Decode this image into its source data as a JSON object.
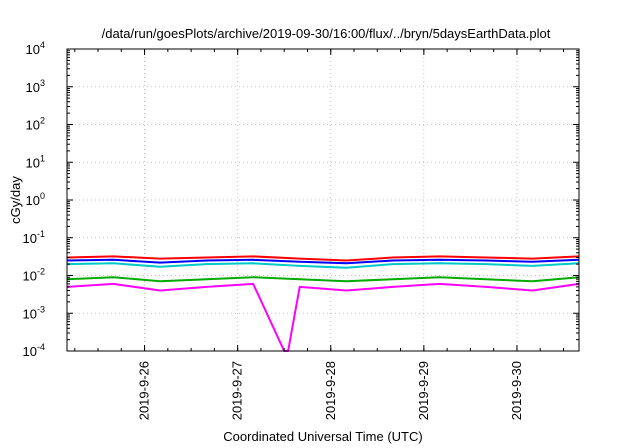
{
  "chart_data": {
    "type": "line",
    "title": "/data/run/goesPlots/archive/2019-09-30/16:00/flux/../bryn/5daysEarthData.plot",
    "xlabel": "Coordinated Universal Time (UTC)",
    "ylabel": "cGy/day",
    "y_scale": "log",
    "ylim": [
      0.0001,
      10000
    ],
    "xlim": [
      "2019-09-25 04:00",
      "2019-09-30 16:00"
    ],
    "y_ticks": [
      {
        "base": "10",
        "exp": "-4",
        "value": 0.0001
      },
      {
        "base": "10",
        "exp": "-3",
        "value": 0.001
      },
      {
        "base": "10",
        "exp": "-2",
        "value": 0.01
      },
      {
        "base": "10",
        "exp": "-1",
        "value": 0.1
      },
      {
        "base": "10",
        "exp": "0",
        "value": 1
      },
      {
        "base": "10",
        "exp": "1",
        "value": 10
      },
      {
        "base": "10",
        "exp": "2",
        "value": 100
      },
      {
        "base": "10",
        "exp": "3",
        "value": 1000
      },
      {
        "base": "10",
        "exp": "4",
        "value": 10000
      }
    ],
    "x_ticks": [
      "2019-9-26",
      "2019-9-27",
      "2019-9-28",
      "2019-9-29",
      "2019-9-30"
    ],
    "grid": true,
    "legend": "none",
    "series": [
      {
        "color": "#ff0000",
        "x": [
          "2019-09-25 04:00",
          "2019-09-25 16:00",
          "2019-09-26 04:00",
          "2019-09-26 16:00",
          "2019-09-27 04:00",
          "2019-09-27 16:00",
          "2019-09-28 04:00",
          "2019-09-28 16:00",
          "2019-09-29 04:00",
          "2019-09-29 16:00",
          "2019-09-30 04:00",
          "2019-09-30 16:00"
        ],
        "values": [
          0.03,
          0.032,
          0.028,
          0.03,
          0.032,
          0.028,
          0.025,
          0.03,
          0.032,
          0.03,
          0.028,
          0.032
        ]
      },
      {
        "color": "#0000ff",
        "x": [
          "2019-09-25 04:00",
          "2019-09-25 16:00",
          "2019-09-26 04:00",
          "2019-09-26 16:00",
          "2019-09-27 04:00",
          "2019-09-27 16:00",
          "2019-09-28 04:00",
          "2019-09-28 16:00",
          "2019-09-29 04:00",
          "2019-09-29 16:00",
          "2019-09-30 04:00",
          "2019-09-30 16:00"
        ],
        "values": [
          0.025,
          0.026,
          0.022,
          0.025,
          0.026,
          0.023,
          0.021,
          0.025,
          0.026,
          0.025,
          0.023,
          0.026
        ]
      },
      {
        "color": "#00c8c8",
        "x": [
          "2019-09-25 04:00",
          "2019-09-25 16:00",
          "2019-09-26 04:00",
          "2019-09-26 16:00",
          "2019-09-27 04:00",
          "2019-09-27 16:00",
          "2019-09-28 04:00",
          "2019-09-28 16:00",
          "2019-09-29 04:00",
          "2019-09-29 16:00",
          "2019-09-30 04:00",
          "2019-09-30 16:00"
        ],
        "values": [
          0.02,
          0.021,
          0.017,
          0.02,
          0.021,
          0.018,
          0.016,
          0.02,
          0.021,
          0.02,
          0.018,
          0.021
        ]
      },
      {
        "color": "#00aa00",
        "x": [
          "2019-09-25 04:00",
          "2019-09-25 16:00",
          "2019-09-26 04:00",
          "2019-09-26 16:00",
          "2019-09-27 04:00",
          "2019-09-27 16:00",
          "2019-09-28 04:00",
          "2019-09-28 16:00",
          "2019-09-29 04:00",
          "2019-09-29 16:00",
          "2019-09-30 04:00",
          "2019-09-30 16:00"
        ],
        "values": [
          0.008,
          0.009,
          0.007,
          0.008,
          0.009,
          0.008,
          0.007,
          0.008,
          0.009,
          0.008,
          0.007,
          0.009
        ]
      },
      {
        "color": "#ff00ff",
        "x": [
          "2019-09-25 04:00",
          "2019-09-25 16:00",
          "2019-09-26 04:00",
          "2019-09-26 16:00",
          "2019-09-27 04:00",
          "2019-09-27 12:00",
          "2019-09-27 13:00",
          "2019-09-27 16:00",
          "2019-09-28 04:00",
          "2019-09-28 16:00",
          "2019-09-29 04:00",
          "2019-09-29 16:00",
          "2019-09-30 04:00",
          "2019-09-30 16:00"
        ],
        "values": [
          0.005,
          0.006,
          0.004,
          0.005,
          0.006,
          0.0001,
          0.0001,
          0.005,
          0.004,
          0.005,
          0.006,
          0.005,
          0.004,
          0.006
        ]
      }
    ]
  }
}
